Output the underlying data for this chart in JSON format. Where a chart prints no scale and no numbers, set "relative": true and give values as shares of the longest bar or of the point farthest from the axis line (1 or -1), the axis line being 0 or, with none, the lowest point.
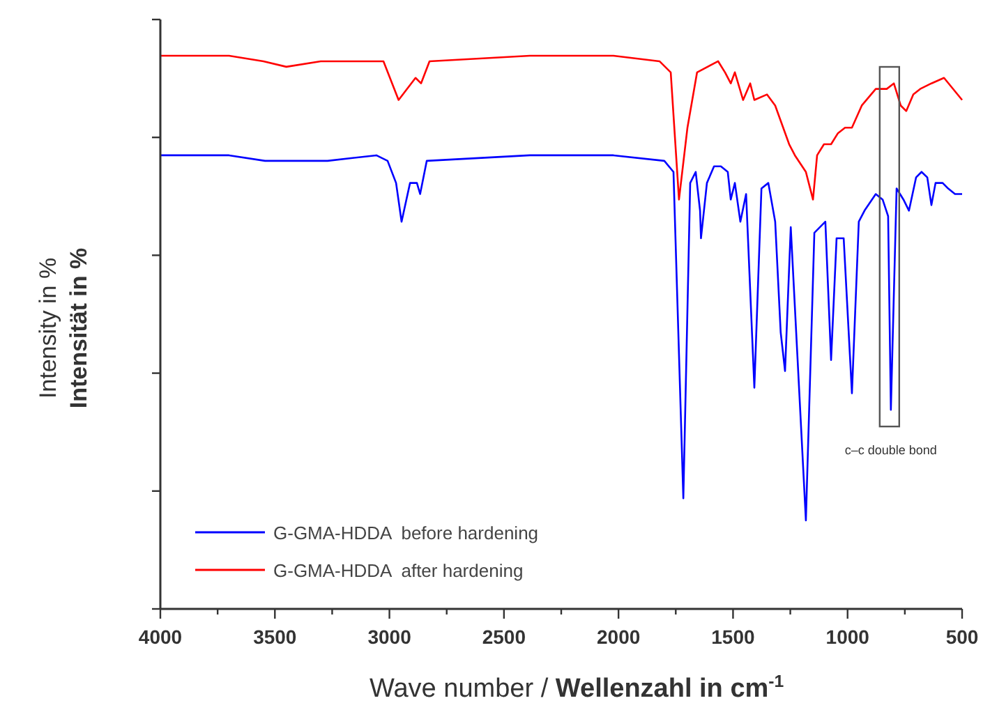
{
  "chart_data": {
    "type": "line",
    "relative": true,
    "xlabel": "Wave number / Wellenzahl in cm$^{-1}$",
    "ylabel": "Intensity in %\nIntensität in %",
    "xlim": [
      4000,
      500
    ],
    "xticks": [
      4000,
      {
        "value": 3750,
        "label": null
      },
      3500,
      {
        "value": 3250,
        "label": null
      },
      3000,
      {
        "value": 2750,
        "label": null
      },
      2500,
      {
        "value": 2250,
        "label": null
      },
      2000,
      {
        "value": 1750,
        "label": null
      },
      1500,
      {
        "value": 1250,
        "label": null
      },
      1000,
      {
        "value": 750,
        "label": null
      },
      500
    ],
    "grid": false,
    "legend": "bottom left",
    "line_style": "solid",
    "marker": "none",
    "annotations": [
      {
        "text": "c–c double bond",
        "x": 811,
        "y": 0.36
      }
    ],
    "series": [
      {
        "name": "G-GMA-HDDA  before hardening",
        "color": "#0000ff",
        "x": [
          4000,
          3700,
          3543,
          3483,
          3270,
          3057,
          3008,
          2971,
          2947,
          2910,
          2880,
          2866,
          2837,
          2387,
          2022,
          1800,
          1760,
          1717,
          1687,
          1663,
          1644,
          1640,
          1614,
          1583,
          1553,
          1523,
          1510,
          1492,
          1468,
          1443,
          1407,
          1376,
          1346,
          1316,
          1292,
          1273,
          1248,
          1182,
          1145,
          1121,
          1097,
          1072,
          1048,
          1017,
          981,
          951,
          926,
          877,
          847,
          823,
          811,
          786,
          756,
          732,
          701,
          677,
          652,
          634,
          616,
          585,
          561,
          531,
          500
        ],
        "values": [
          0.82,
          0.82,
          0.81,
          0.81,
          0.81,
          0.82,
          0.81,
          0.77,
          0.7,
          0.77,
          0.77,
          0.75,
          0.81,
          0.82,
          0.82,
          0.81,
          0.79,
          0.2,
          0.77,
          0.79,
          0.72,
          0.67,
          0.77,
          0.8,
          0.8,
          0.79,
          0.74,
          0.77,
          0.7,
          0.75,
          0.4,
          0.76,
          0.77,
          0.7,
          0.5,
          0.43,
          0.69,
          0.16,
          0.68,
          0.69,
          0.7,
          0.45,
          0.67,
          0.67,
          0.39,
          0.7,
          0.72,
          0.75,
          0.74,
          0.71,
          0.36,
          0.76,
          0.74,
          0.72,
          0.78,
          0.79,
          0.78,
          0.73,
          0.77,
          0.77,
          0.76,
          0.75,
          0.75
        ]
      },
      {
        "name": "G-GMA-HDDA  after hardening",
        "color": "#ff0000",
        "x": [
          4000,
          3700,
          3550,
          3450,
          3300,
          3026,
          2960,
          2886,
          2862,
          2825,
          2387,
          2022,
          1821,
          1772,
          1736,
          1699,
          1657,
          1565,
          1535,
          1510,
          1492,
          1456,
          1425,
          1407,
          1352,
          1316,
          1255,
          1230,
          1182,
          1151,
          1133,
          1103,
          1072,
          1042,
          1011,
          981,
          938,
          877,
          829,
          798,
          768,
          744,
          713,
          683,
          634,
          579,
          500
        ],
        "values": [
          1.0,
          1.0,
          0.99,
          0.98,
          0.99,
          0.99,
          0.92,
          0.96,
          0.95,
          0.99,
          1.0,
          1.0,
          0.99,
          0.97,
          0.74,
          0.87,
          0.97,
          0.99,
          0.97,
          0.95,
          0.97,
          0.92,
          0.95,
          0.92,
          0.93,
          0.91,
          0.84,
          0.82,
          0.79,
          0.74,
          0.82,
          0.84,
          0.84,
          0.86,
          0.87,
          0.87,
          0.91,
          0.94,
          0.94,
          0.95,
          0.91,
          0.9,
          0.93,
          0.94,
          0.95,
          0.96,
          0.92
        ]
      }
    ]
  }
}
